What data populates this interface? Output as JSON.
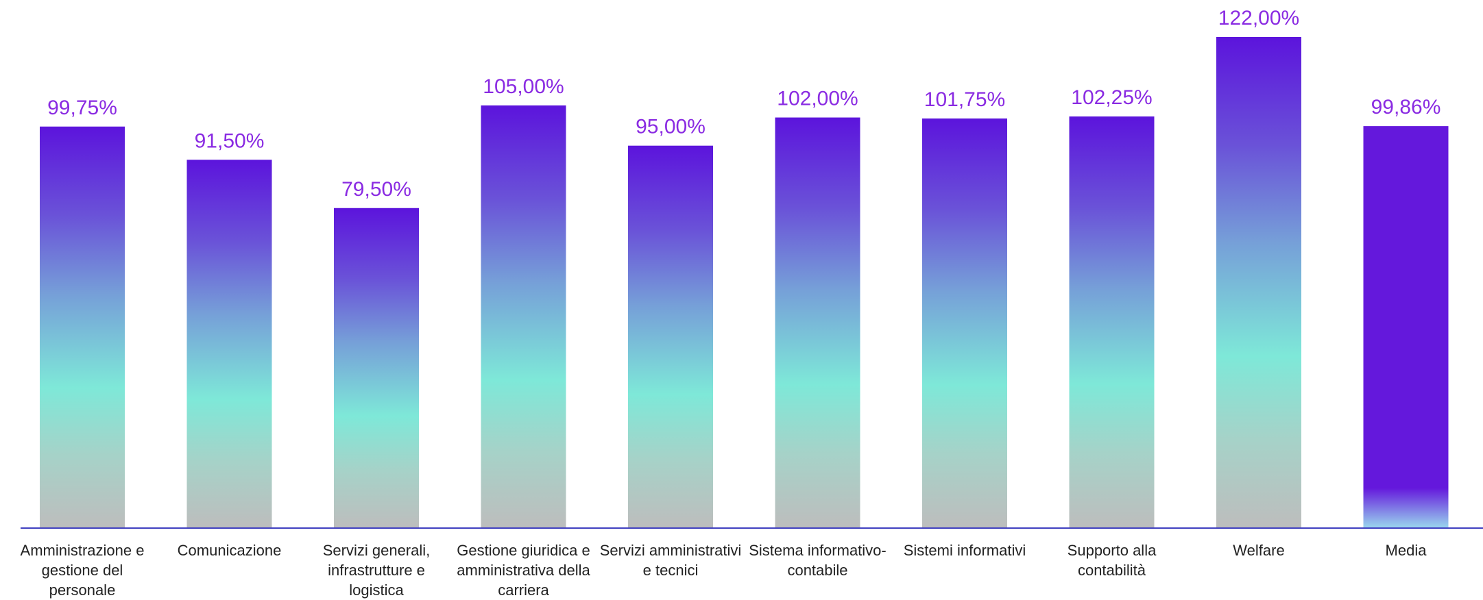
{
  "chart_data": {
    "type": "bar",
    "categories": [
      [
        "Amministrazione e",
        "gestione del",
        "personale"
      ],
      [
        "Comunicazione"
      ],
      [
        "Servizi generali,",
        "infrastrutture e",
        "logistica"
      ],
      [
        "Gestione giuridica e",
        "amministrativa della",
        "carriera"
      ],
      [
        "Servizi amministrativi",
        "e tecnici"
      ],
      [
        "Sistema informativo-",
        "contabile"
      ],
      [
        "Sistemi informativi"
      ],
      [
        "Supporto alla",
        "contabilità"
      ],
      [
        "Welfare"
      ],
      [
        "Media"
      ]
    ],
    "values": [
      99.75,
      91.5,
      79.5,
      105.0,
      95.0,
      102.0,
      101.75,
      102.25,
      122.0,
      99.86
    ],
    "value_labels": [
      "99,75%",
      "91,50%",
      "79,50%",
      "105,00%",
      "95,00%",
      "102,00%",
      "101,75%",
      "102,25%",
      "122,00%",
      "99,86%"
    ],
    "ylim": [
      0,
      122
    ],
    "grid": false,
    "legend": "none",
    "colors": {
      "gradient_top": "#5c14dc",
      "gradient_mid_blue": "#7a9ad8",
      "gradient_teal": "#7ee8d8",
      "gradient_bottom": "#bdbdbd",
      "media_top": "#6418dc",
      "media_bottom": "#9ad8ee",
      "value_label": "#8a2be2",
      "axis_line": "#4040c0"
    }
  }
}
